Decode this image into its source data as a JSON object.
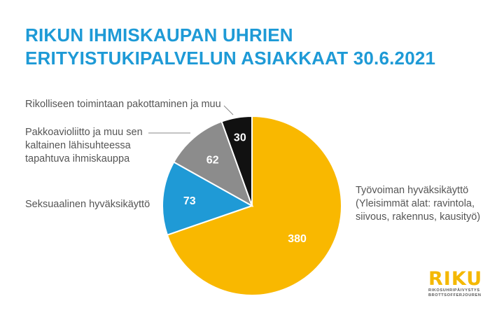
{
  "title_lines": [
    "RIKUN IHMISKAUPAN UHRIEN",
    "ERITYISTUKIPALVELUN ASIAKKAAT 30.6.2021"
  ],
  "chart_data": {
    "type": "pie",
    "title": "RIKUN IHMISKAUPAN UHRIEN ERITYISTUKIPALVELUN ASIAKKAAT 30.6.2021",
    "slices": [
      {
        "value": 380,
        "value_label": "380",
        "color": "#f9b800",
        "value_color": "#ffffff",
        "label_lines": [
          "Työvoiman hyväksikäyttö",
          "(Yleisimmät alat: ravintola,",
          "siivous, rakennus, kausityö)"
        ]
      },
      {
        "value": 73,
        "value_label": "73",
        "color": "#1f9ad6",
        "value_color": "#ffffff",
        "label_lines": [
          "Seksuaalinen hyväksikäyttö"
        ]
      },
      {
        "value": 62,
        "value_label": "62",
        "color": "#8c8c8c",
        "value_color": "#ffffff",
        "label_lines": [
          "Pakkoavioliitto ja muu sen",
          "kaltainen lähisuhteessa",
          "tapahtuva ihmiskauppa"
        ]
      },
      {
        "value": 30,
        "value_label": "30",
        "color": "#111111",
        "value_color": "#ffffff",
        "label_lines": [
          "Rikolliseen toimintaan pakottaminen ja muu"
        ]
      }
    ]
  },
  "logo": {
    "word": "RIKU",
    "sub_lines": [
      "RIKOSUHRIPÄIVYSTYS",
      "BROTTSOFFERJOUREN"
    ]
  },
  "colors": {
    "title": "#1e9ad6",
    "label_text": "#555555",
    "leader_line": "#888888",
    "logo_accent": "#f4b800"
  }
}
